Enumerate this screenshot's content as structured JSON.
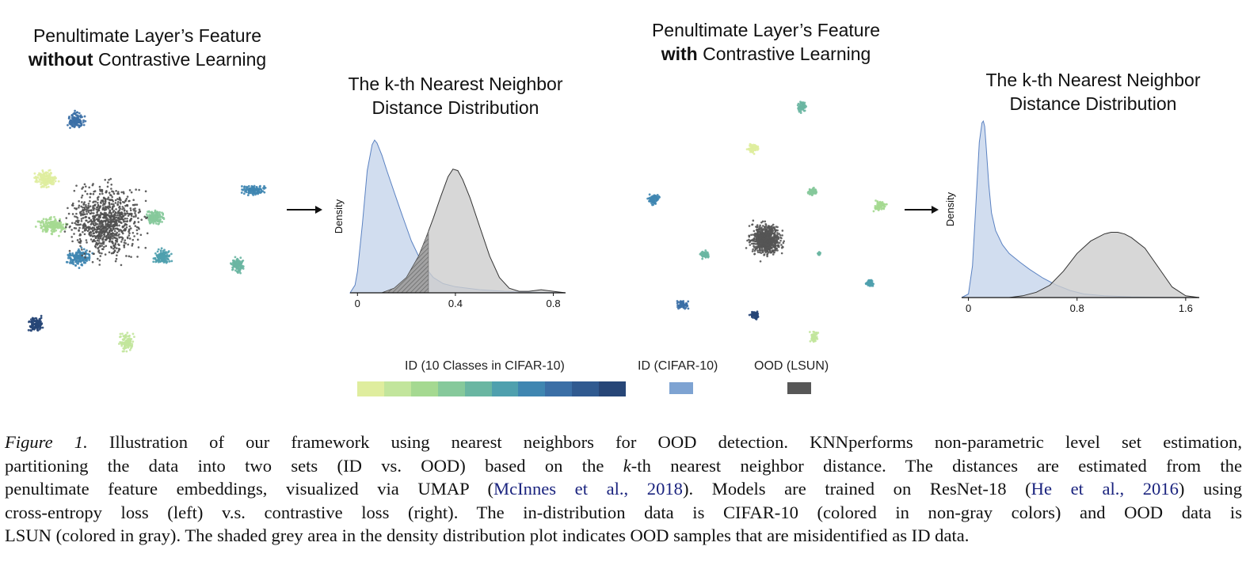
{
  "panels": {
    "umap_left": {
      "title_line1": "Penultimate Layer’s Feature",
      "title_bold": "without",
      "title_rest": " Contrastive Learning"
    },
    "umap_right": {
      "title_line1": "Penultimate Layer’s Feature",
      "title_bold": "with",
      "title_rest": " Contrastive Learning"
    },
    "density_left": {
      "title_line1": "The k-th Nearest Neighbor",
      "title_line2": "Distance Distribution"
    },
    "density_right": {
      "title_line1": "The k-th Nearest Neighbor",
      "title_line2": "Distance Distribution"
    }
  },
  "legend": {
    "id_classes_label": "ID (10 Classes in CIFAR-10)",
    "id_label": "ID (CIFAR-10)",
    "ood_label": "OOD (LSUN)",
    "class_colors": [
      "#dfed9e",
      "#c2e59c",
      "#a5d991",
      "#86c99b",
      "#6ab6a2",
      "#4fa0ae",
      "#3f86b1",
      "#3b6fa6",
      "#305a90",
      "#274677"
    ],
    "id_color": "#7ea3d2",
    "ood_color": "#575757"
  },
  "chart_data": [
    {
      "type": "area",
      "title": "The k-th Nearest Neighbor Distance Distribution",
      "xlabel": "",
      "ylabel": "Density",
      "xticks": [
        "0",
        "0.4",
        "0.8"
      ],
      "xlim": [
        -0.03,
        0.85
      ],
      "grid": false,
      "series": [
        {
          "name": "ID (CIFAR-10)",
          "color": "#c9d7ec",
          "stroke": "#5b82c2",
          "x": [
            -0.03,
            -0.01,
            0.0,
            0.02,
            0.04,
            0.06,
            0.07,
            0.08,
            0.1,
            0.12,
            0.15,
            0.18,
            0.2,
            0.22,
            0.25,
            0.28,
            0.31,
            0.35,
            0.4,
            0.45,
            0.5,
            0.55,
            0.6,
            0.7,
            0.8,
            0.85
          ],
          "y": [
            0,
            0.05,
            0.14,
            0.45,
            0.8,
            0.97,
            1.0,
            0.98,
            0.9,
            0.8,
            0.66,
            0.52,
            0.43,
            0.34,
            0.24,
            0.16,
            0.1,
            0.06,
            0.04,
            0.03,
            0.02,
            0.015,
            0.01,
            0.005,
            0.002,
            0
          ]
        },
        {
          "name": "OOD (LSUN)",
          "color": "#cdcdcd",
          "stroke": "#333333",
          "x": [
            0.1,
            0.15,
            0.2,
            0.25,
            0.28,
            0.31,
            0.34,
            0.37,
            0.39,
            0.41,
            0.43,
            0.46,
            0.5,
            0.54,
            0.58,
            0.62,
            0.66,
            0.7,
            0.75,
            0.8,
            0.85
          ],
          "y": [
            0,
            0.03,
            0.1,
            0.24,
            0.36,
            0.49,
            0.63,
            0.76,
            0.81,
            0.8,
            0.74,
            0.62,
            0.43,
            0.24,
            0.1,
            0.03,
            0.01,
            0.01,
            0.02,
            0.01,
            0
          ]
        }
      ],
      "misidentified_threshold": 0.29
    },
    {
      "type": "area",
      "title": "The k-th Nearest Neighbor Distance Distribution",
      "xlabel": "",
      "ylabel": "Density",
      "xticks": [
        "0",
        "0.8",
        "1.6"
      ],
      "xlim": [
        -0.05,
        1.7
      ],
      "grid": false,
      "series": [
        {
          "name": "ID (CIFAR-10)",
          "color": "#c9d7ec",
          "stroke": "#5b82c2",
          "x": [
            -0.05,
            0.0,
            0.03,
            0.06,
            0.08,
            0.1,
            0.11,
            0.12,
            0.13,
            0.15,
            0.17,
            0.2,
            0.25,
            0.3,
            0.38,
            0.45,
            0.55,
            0.65,
            0.75,
            0.85,
            1.0,
            1.2,
            1.4,
            1.7
          ],
          "y": [
            0,
            0.02,
            0.18,
            0.6,
            0.88,
            0.99,
            1.0,
            0.97,
            0.86,
            0.64,
            0.48,
            0.38,
            0.3,
            0.25,
            0.2,
            0.16,
            0.11,
            0.07,
            0.04,
            0.02,
            0.01,
            0.004,
            0.002,
            0
          ]
        },
        {
          "name": "OOD (LSUN)",
          "color": "#cdcdcd",
          "stroke": "#333333",
          "x": [
            0.3,
            0.4,
            0.5,
            0.6,
            0.7,
            0.8,
            0.9,
            1.0,
            1.05,
            1.1,
            1.15,
            1.2,
            1.3,
            1.4,
            1.5,
            1.6,
            1.7
          ],
          "y": [
            0,
            0.01,
            0.03,
            0.07,
            0.15,
            0.25,
            0.32,
            0.36,
            0.37,
            0.37,
            0.36,
            0.34,
            0.28,
            0.17,
            0.06,
            0.01,
            0
          ]
        }
      ]
    }
  ],
  "caption": {
    "fig_label": "Figure 1.",
    "line1": " Illustration of our framework using nearest neighbors for OOD detection. KNNperforms non-parametric level set estimation,",
    "line2a": "partitioning the data into two sets (ID vs. OOD) based on the ",
    "k": "k",
    "line2b": "-th nearest neighbor distance. The distances are estimated from the",
    "line3a": "penultimate feature embeddings, visualized via UMAP (",
    "cite1": "McInnes et al., 2018",
    "line3b": "). Models are trained on ResNet-18 (",
    "cite2": "He et al., 2016",
    "line3c": ") using",
    "line4": "cross-entropy loss (left) v.s. contrastive loss (right). The in-distribution data is CIFAR-10 (colored in non-gray colors) and OOD data is",
    "line5": "LSUN (colored in gray). The shaded grey area in the density distribution plot indicates OOD samples that are misidentified as ID data."
  }
}
